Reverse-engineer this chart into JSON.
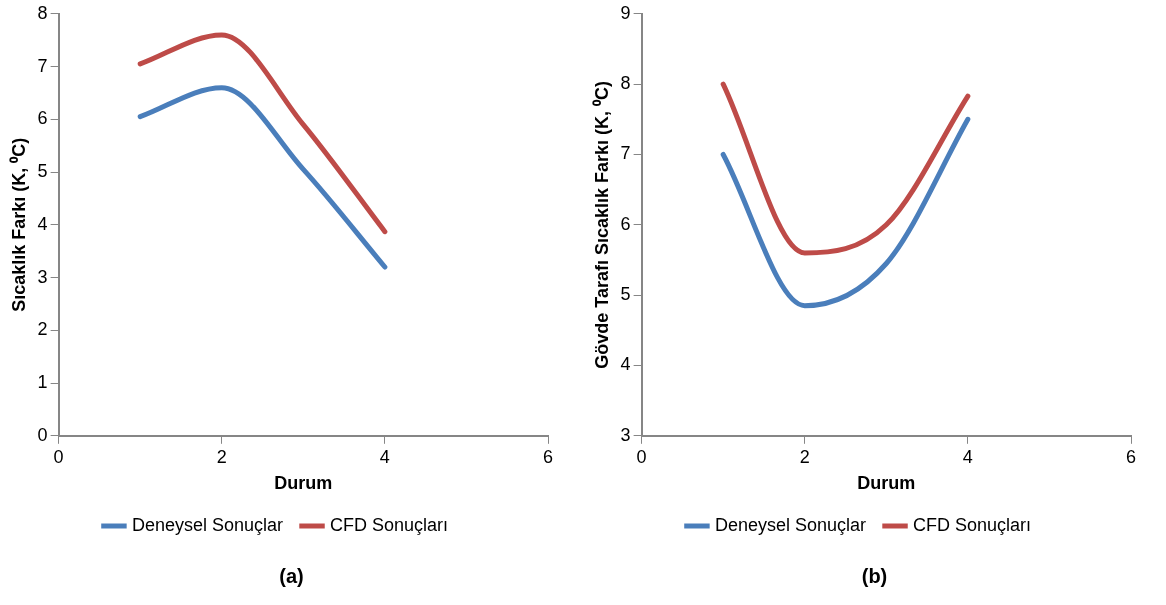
{
  "chart_data": [
    {
      "type": "line",
      "title": "(a)",
      "xlabel": "Durum",
      "ylabel": "Sıcaklık Farkı (K, ⁰C)",
      "x": [
        1,
        2,
        3,
        4
      ],
      "series": [
        {
          "name": "Deneysel Sonuçlar",
          "color": "#4a7ebb",
          "values": [
            6.05,
            6.6,
            5.05,
            3.2
          ]
        },
        {
          "name": "CFD Sonuçları",
          "color": "#be4b48",
          "values": [
            7.05,
            7.6,
            5.9,
            3.87
          ]
        }
      ],
      "xlim": [
        0,
        6
      ],
      "xticks": [
        0,
        2,
        4,
        6
      ],
      "ylim": [
        0,
        8
      ],
      "yticks": [
        0,
        1,
        2,
        3,
        4,
        5,
        6,
        7,
        8
      ],
      "grid": false,
      "legend": "bottom",
      "marker": "none",
      "line_style": "solid"
    },
    {
      "type": "line",
      "title": "(b)",
      "xlabel": "Durum",
      "ylabel": "Gövde Tarafı Sıcaklık Farkı (K, ⁰C)",
      "x": [
        1,
        2,
        3,
        4
      ],
      "series": [
        {
          "name": "Deneysel Sonuçlar",
          "color": "#4a7ebb",
          "values": [
            7.0,
            4.85,
            5.45,
            7.5
          ]
        },
        {
          "name": "CFD Sonuçları",
          "color": "#be4b48",
          "values": [
            8.0,
            5.6,
            6.0,
            7.83
          ]
        }
      ],
      "xlim": [
        0,
        6
      ],
      "xticks": [
        0,
        2,
        4,
        6
      ],
      "ylim": [
        3,
        9
      ],
      "yticks": [
        3,
        4,
        5,
        6,
        7,
        8,
        9
      ],
      "grid": false,
      "legend": "bottom",
      "marker": "none",
      "line_style": "solid"
    }
  ]
}
